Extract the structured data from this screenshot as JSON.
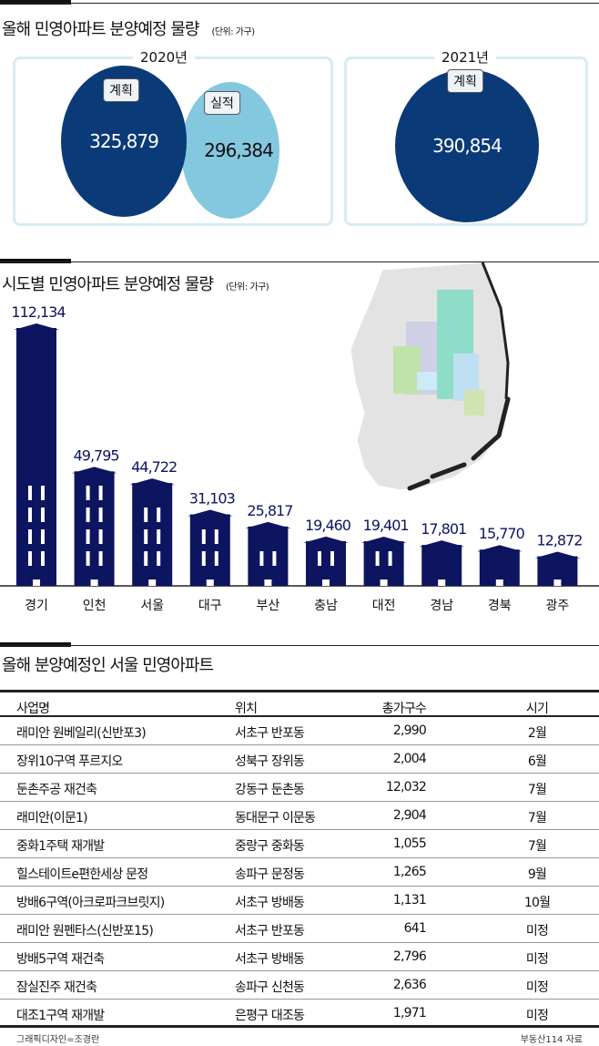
{
  "section1": {
    "title": "올해 민영아파트 분양예정 물량",
    "unit": "(단위: 가구)",
    "y2020": {
      "year": "2020년",
      "plan_label": "계획",
      "plan_value": "325,879",
      "actual_label": "실적",
      "actual_value": "296,384"
    },
    "y2021": {
      "year": "2021년",
      "plan_label": "계획",
      "plan_value": "390,854"
    },
    "colors": {
      "plan": "#0b3a78",
      "actual": "#84c8df",
      "box": "#d6ecf3"
    }
  },
  "section2": {
    "title": "시도별 민영아파트 분양예정 물량",
    "unit": "(단위: 가구)"
  },
  "chart_data": {
    "type": "bar",
    "title": "시도별 민영아파트 분양예정 물량",
    "ylabel": "가구",
    "categories": [
      "경기",
      "인천",
      "서울",
      "대구",
      "부산",
      "충남",
      "대전",
      "경남",
      "경북",
      "광주"
    ],
    "values": [
      112134,
      49795,
      44722,
      31103,
      25817,
      19460,
      19401,
      17801,
      15770,
      12872
    ],
    "labels": [
      "112,134",
      "49,795",
      "44,722",
      "31,103",
      "25,817",
      "19,460",
      "19,401",
      "17,801",
      "15,770",
      "12,872"
    ],
    "ylim": [
      0,
      112134
    ],
    "color": "#0d1560"
  },
  "section3": {
    "title": "올해 분양예정인 서울 민영아파트",
    "headers": [
      "사업명",
      "위치",
      "총가구수",
      "시기"
    ],
    "rows": [
      [
        "래미안 원베일리(신반포3)",
        "서초구 반포동",
        "2,990",
        "2월"
      ],
      [
        "장위10구역 푸르지오",
        "성북구 장위동",
        "2,004",
        "6월"
      ],
      [
        "둔촌주공 재건축",
        "강동구 둔촌동",
        "12,032",
        "7월"
      ],
      [
        "래미안(이문1)",
        "동대문구 이문동",
        "2,904",
        "7월"
      ],
      [
        "중화1주택 재개발",
        "중랑구 중화동",
        "1,055",
        "7월"
      ],
      [
        "힐스테이트e편한세상 문정",
        "송파구 문정동",
        "1,265",
        "9월"
      ],
      [
        "방배6구역(아크로파크브릿지)",
        "서초구 방배동",
        "1,131",
        "10월"
      ],
      [
        "래미안 원펜타스(신반포15)",
        "서초구 반포동",
        "641",
        "미정"
      ],
      [
        "방배5구역 재건축",
        "서초구 방배동",
        "2,796",
        "미정"
      ],
      [
        "잠실진주 재건축",
        "송파구 신천동",
        "2,636",
        "미정"
      ],
      [
        "대조1구역 재개발",
        "은평구 대조동",
        "1,971",
        "미정"
      ]
    ]
  },
  "footer": {
    "credit": "그래픽디자인=조경란",
    "source": "부동산114 자료"
  }
}
